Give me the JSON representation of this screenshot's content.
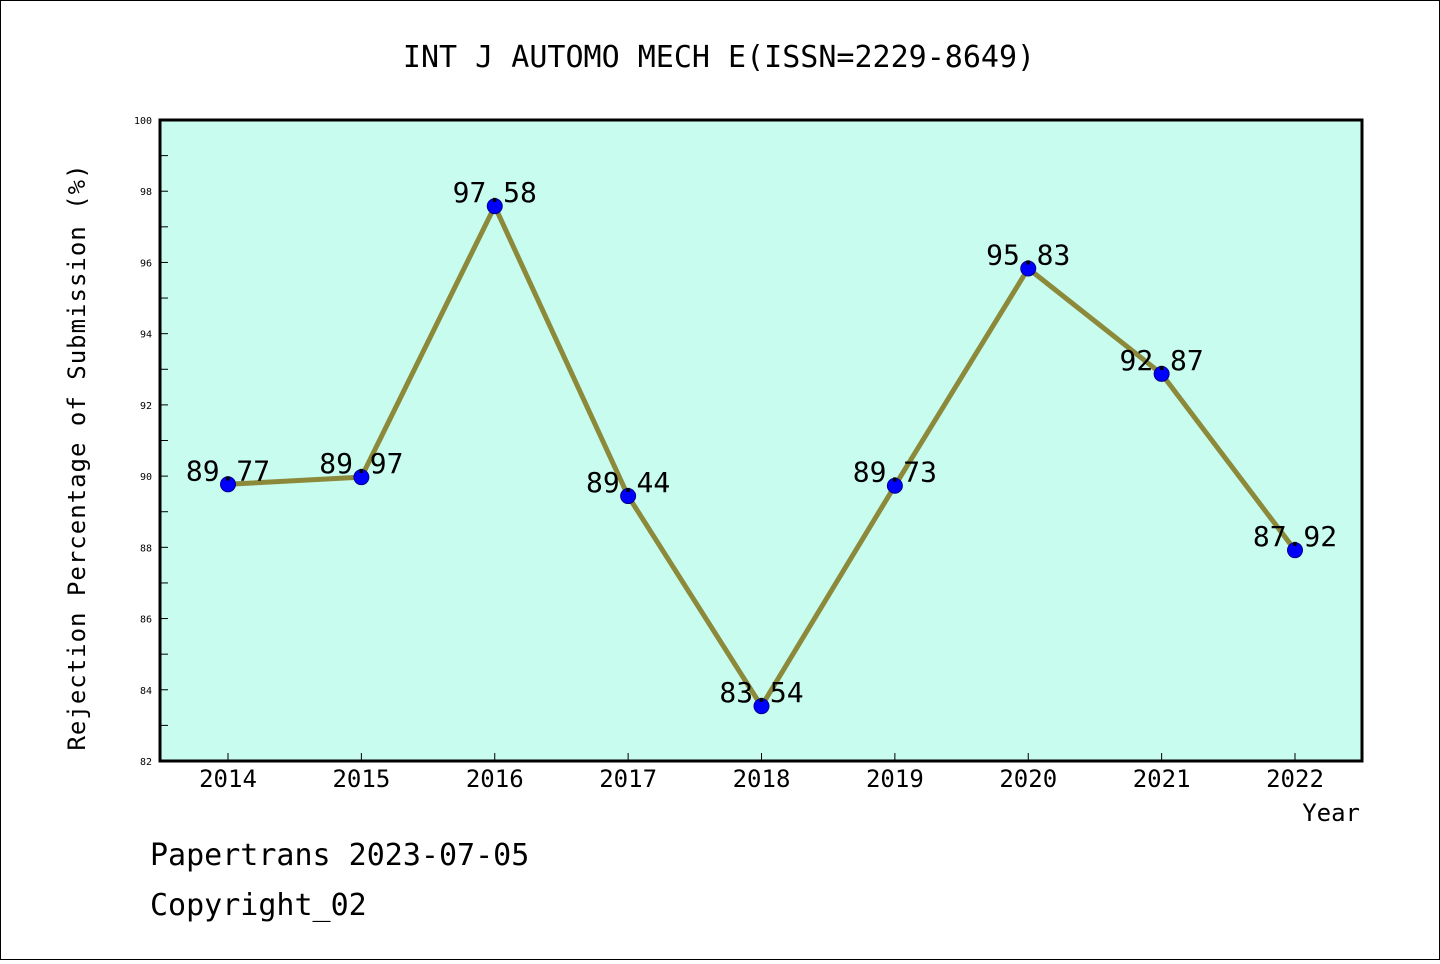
{
  "chart_data": {
    "type": "line",
    "title": "INT J AUTOMO MECH E(ISSN=2229-8649)",
    "xlabel": "Year",
    "ylabel": "Rejection Percentage of Submission (%)",
    "categories": [
      "2014",
      "2015",
      "2016",
      "2017",
      "2018",
      "2019",
      "2020",
      "2021",
      "2022"
    ],
    "values": [
      89.77,
      89.97,
      97.58,
      89.44,
      83.54,
      89.73,
      95.83,
      92.87,
      87.92
    ],
    "data_labels": [
      "89.77",
      "89.97",
      "97.58",
      "89.44",
      "83.54",
      "89.73",
      "95.83",
      "92.87",
      "87.92"
    ],
    "ylim": [
      82,
      100
    ],
    "yticks": [
      82,
      84,
      86,
      88,
      90,
      92,
      94,
      96,
      98,
      100
    ],
    "grid": false,
    "colors": {
      "plot_background": "#c8fcee",
      "line": "#8c8a3a",
      "marker": "#0000ff"
    }
  },
  "footer": {
    "line1": "Papertrans 2023-07-05",
    "line2": "Copyright_02"
  }
}
